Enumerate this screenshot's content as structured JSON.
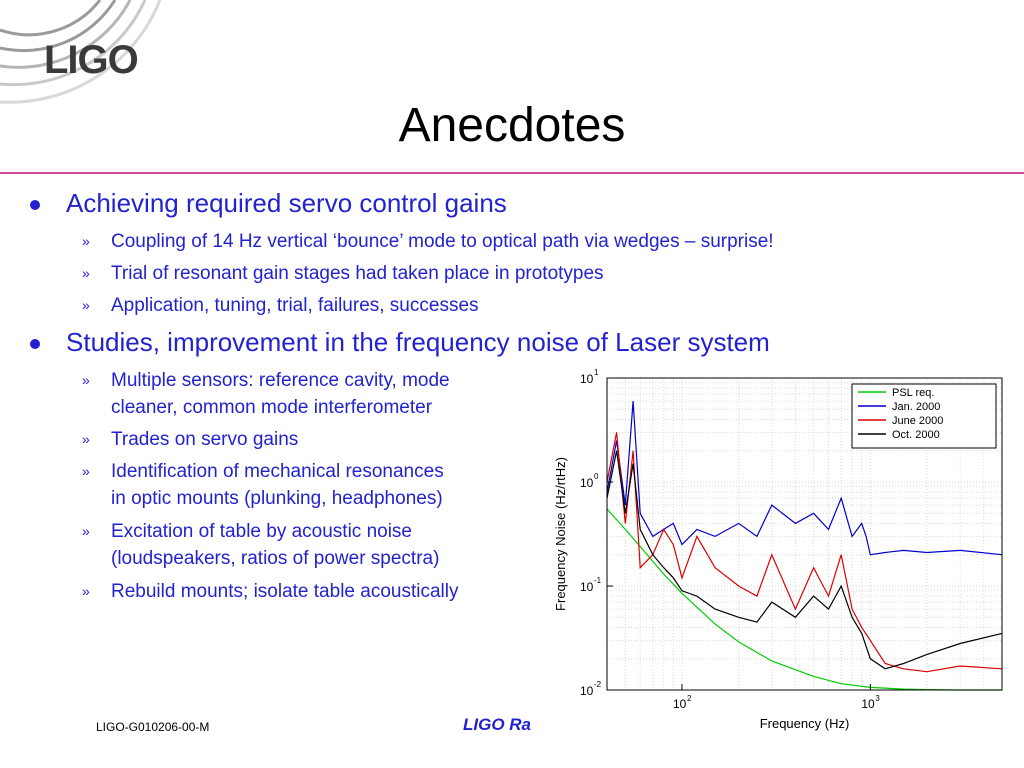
{
  "header": {
    "logo_text": "LIGO",
    "title": "Anecdotes"
  },
  "bullets": [
    {
      "text": "Achieving required servo control gains",
      "subs": [
        "Coupling of 14 Hz vertical ‘bounce’ mode to optical path via wedges – surprise!",
        "Trial of resonant gain stages had taken place in prototypes",
        "Application, tuning, trial, failures, successes"
      ]
    },
    {
      "text": "Studies, improvement in the frequency noise of Laser system",
      "subs": [
        [
          "Multiple sensors: reference cavity, mode",
          "cleaner, common mode interferometer"
        ],
        [
          "Trades on servo gains"
        ],
        [
          "Identification of mechanical resonances",
          "in optic mounts (plunking, headphones)"
        ],
        [
          "Excitation of table by acoustic noise",
          "(loudspeakers, ratios of power spectra)"
        ],
        [
          "Rebuild mounts; isolate table acoustically"
        ]
      ]
    }
  ],
  "sub_marker": "»",
  "footer": {
    "doc_id": "LIGO-G010206-00-M",
    "lab_partial": "LIGO Ra"
  },
  "chart_data": {
    "type": "line",
    "xlabel": "Frequency (Hz)",
    "ylabel": "Frequency Noise (Hz/rtHz)",
    "xscale": "log",
    "yscale": "log",
    "xlim": [
      40,
      5000
    ],
    "ylim": [
      0.01,
      10
    ],
    "x_ticks": [
      {
        "value": 100,
        "base": "10",
        "exp": "2"
      },
      {
        "value": 1000,
        "base": "10",
        "exp": "3"
      }
    ],
    "y_ticks": [
      {
        "value": 10,
        "base": "10",
        "exp": "1"
      },
      {
        "value": 1,
        "base": "10",
        "exp": "0"
      },
      {
        "value": 0.1,
        "base": "10",
        "exp": "-1"
      },
      {
        "value": 0.01,
        "base": "10",
        "exp": "-2"
      }
    ],
    "grid": true,
    "legend_position": "top-right",
    "series": [
      {
        "name": "PSL req.",
        "color": "#00cc00",
        "x": [
          40,
          50,
          60,
          80,
          100,
          150,
          200,
          300,
          500,
          700,
          1000,
          1500,
          2000,
          3000,
          5000
        ],
        "y": [
          0.55,
          0.35,
          0.24,
          0.13,
          0.085,
          0.043,
          0.029,
          0.019,
          0.0135,
          0.0115,
          0.0106,
          0.0102,
          0.0101,
          0.01,
          0.01
        ]
      },
      {
        "name": "Jan. 2000",
        "color": "#0000cc",
        "x": [
          40,
          45,
          50,
          55,
          60,
          70,
          80,
          90,
          100,
          120,
          150,
          200,
          250,
          300,
          400,
          500,
          600,
          700,
          800,
          900,
          950,
          1000,
          1200,
          1500,
          2000,
          3000,
          5000
        ],
        "y": [
          0.8,
          2.5,
          0.6,
          6.0,
          0.5,
          0.3,
          0.35,
          0.4,
          0.25,
          0.35,
          0.3,
          0.4,
          0.3,
          0.6,
          0.4,
          0.5,
          0.35,
          0.7,
          0.3,
          0.4,
          0.3,
          0.2,
          0.21,
          0.22,
          0.21,
          0.22,
          0.2
        ]
      },
      {
        "name": "June 2000",
        "color": "#dd0000",
        "x": [
          40,
          45,
          50,
          55,
          60,
          70,
          80,
          90,
          100,
          120,
          150,
          200,
          250,
          300,
          400,
          500,
          600,
          700,
          800,
          900,
          1000,
          1200,
          1500,
          2000,
          3000,
          5000
        ],
        "y": [
          1.0,
          3.0,
          0.4,
          2.0,
          0.15,
          0.2,
          0.35,
          0.25,
          0.12,
          0.3,
          0.15,
          0.1,
          0.08,
          0.2,
          0.06,
          0.15,
          0.08,
          0.2,
          0.06,
          0.04,
          0.03,
          0.018,
          0.016,
          0.015,
          0.017,
          0.016
        ]
      },
      {
        "name": "Oct. 2000",
        "color": "#000000",
        "x": [
          40,
          45,
          50,
          55,
          60,
          70,
          80,
          90,
          100,
          120,
          150,
          200,
          250,
          300,
          400,
          500,
          600,
          700,
          800,
          900,
          1000,
          1200,
          1500,
          2000,
          3000,
          5000
        ],
        "y": [
          0.7,
          2.0,
          0.5,
          1.5,
          0.35,
          0.2,
          0.15,
          0.12,
          0.09,
          0.08,
          0.06,
          0.05,
          0.045,
          0.07,
          0.05,
          0.08,
          0.06,
          0.1,
          0.05,
          0.035,
          0.02,
          0.016,
          0.018,
          0.022,
          0.028,
          0.035
        ]
      }
    ]
  }
}
